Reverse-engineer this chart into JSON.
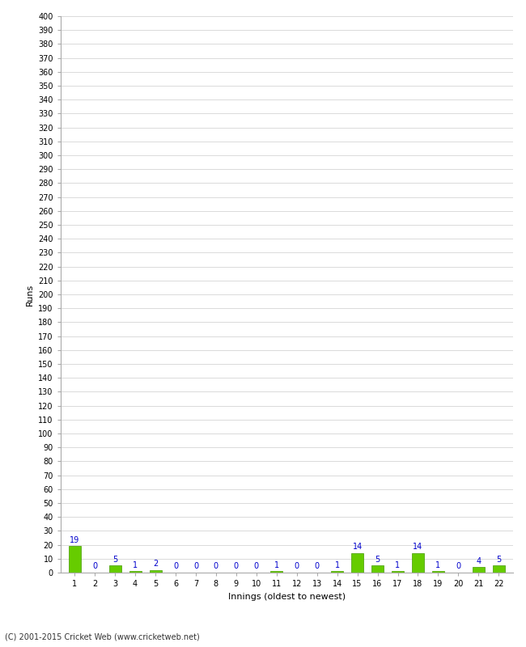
{
  "innings": [
    1,
    2,
    3,
    4,
    5,
    6,
    7,
    8,
    9,
    10,
    11,
    12,
    13,
    14,
    15,
    16,
    17,
    18,
    19,
    20,
    21,
    22
  ],
  "runs": [
    19,
    0,
    5,
    1,
    2,
    0,
    0,
    0,
    0,
    0,
    1,
    0,
    0,
    1,
    14,
    5,
    1,
    14,
    1,
    0,
    4,
    5
  ],
  "bar_color": "#66cc00",
  "bar_edge_color": "#449900",
  "label_color": "#0000cc",
  "ylabel": "Runs",
  "xlabel": "Innings (oldest to newest)",
  "ylim": [
    0,
    400
  ],
  "ytick_step": 10,
  "background_color": "#ffffff",
  "grid_color": "#cccccc",
  "footer": "(C) 2001-2015 Cricket Web (www.cricketweb.net)"
}
